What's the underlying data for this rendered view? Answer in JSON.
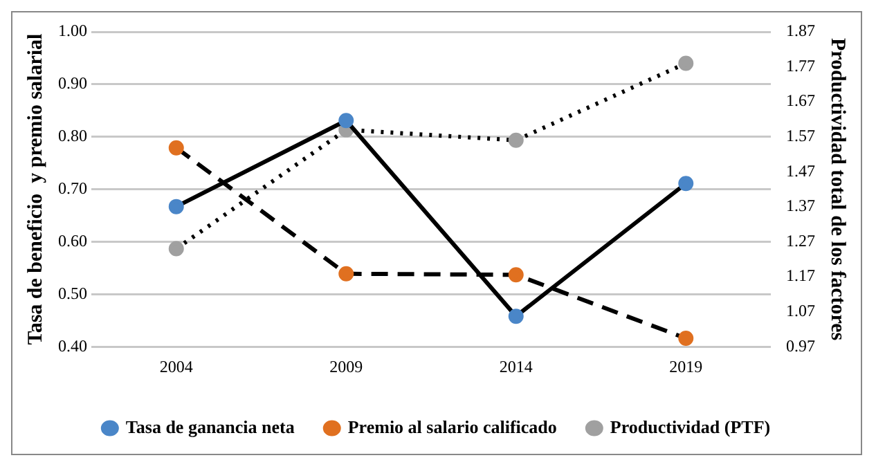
{
  "chart_data": {
    "type": "line",
    "categories": [
      "2004",
      "2009",
      "2014",
      "2019"
    ],
    "ylabel": "Tasa de beneficio  y premio salarial",
    "y2label": "Productividad total de los factores",
    "ylim": [
      0.4,
      1.0
    ],
    "yticks": [
      {
        "value": 0.4,
        "label": "0.40"
      },
      {
        "value": 0.5,
        "label": "0.50"
      },
      {
        "value": 0.6,
        "label": "0.60"
      },
      {
        "value": 0.7,
        "label": "0.70"
      },
      {
        "value": 0.8,
        "label": "0.80"
      },
      {
        "value": 0.9,
        "label": "0.90"
      },
      {
        "value": 1.0,
        "label": "1.00"
      }
    ],
    "y2lim": [
      0.97,
      1.87
    ],
    "y2ticks": [
      0.97,
      1.07,
      1.17,
      1.27,
      1.37,
      1.47,
      1.57,
      1.67,
      1.77,
      1.87
    ],
    "grid": "y",
    "legend": "bottom",
    "marker": "circle",
    "series": [
      {
        "name": "Tasa de ganancia neta",
        "color": "#4a86c8",
        "line_style": "solid",
        "values": [
          0.667,
          0.831,
          0.458,
          0.711
        ]
      },
      {
        "name": "Premio al salario calificado",
        "color": "#e07020",
        "line_style": "dashed",
        "values": [
          0.779,
          0.539,
          0.537,
          0.416
        ]
      },
      {
        "name": "Productividad (PTF)",
        "color": "#a0a0a0",
        "line_style": "dotted",
        "axis": "y2",
        "values": [
          1.25,
          1.59,
          1.56,
          1.78
        ]
      }
    ]
  }
}
